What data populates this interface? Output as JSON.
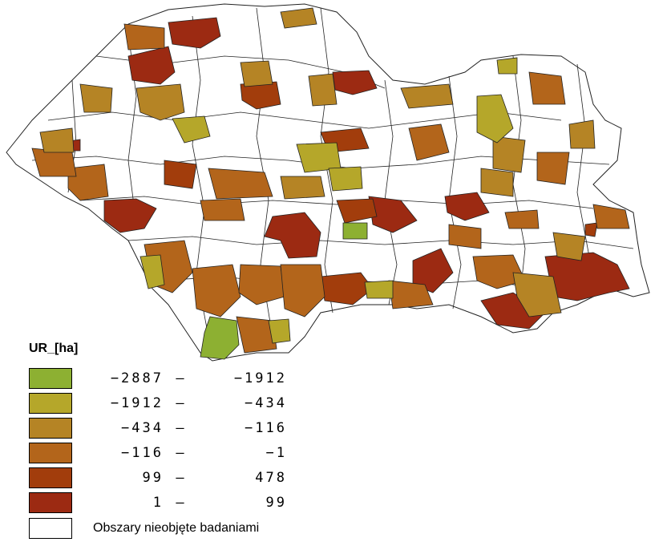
{
  "legend": {
    "title": "UR_[ha]",
    "classes": [
      {
        "from": "−2887",
        "to": "−1912",
        "color": "#8db032"
      },
      {
        "from": "−1912",
        "to": "−434",
        "color": "#b5a72a"
      },
      {
        "from": "−434",
        "to": "−116",
        "color": "#b58425"
      },
      {
        "from": "−116",
        "to": "−1",
        "color": "#b3651b"
      },
      {
        "from": "99",
        "to": "478",
        "color": "#a23d0c"
      },
      {
        "from": "1",
        "to": "99",
        "color": "#9c2a12"
      }
    ],
    "nodata": {
      "label": "Obszary nieobjęte badaniami",
      "color": "#ffffff"
    }
  },
  "map": {
    "border_color": "#222222",
    "nodata_fill": "#ffffff"
  }
}
